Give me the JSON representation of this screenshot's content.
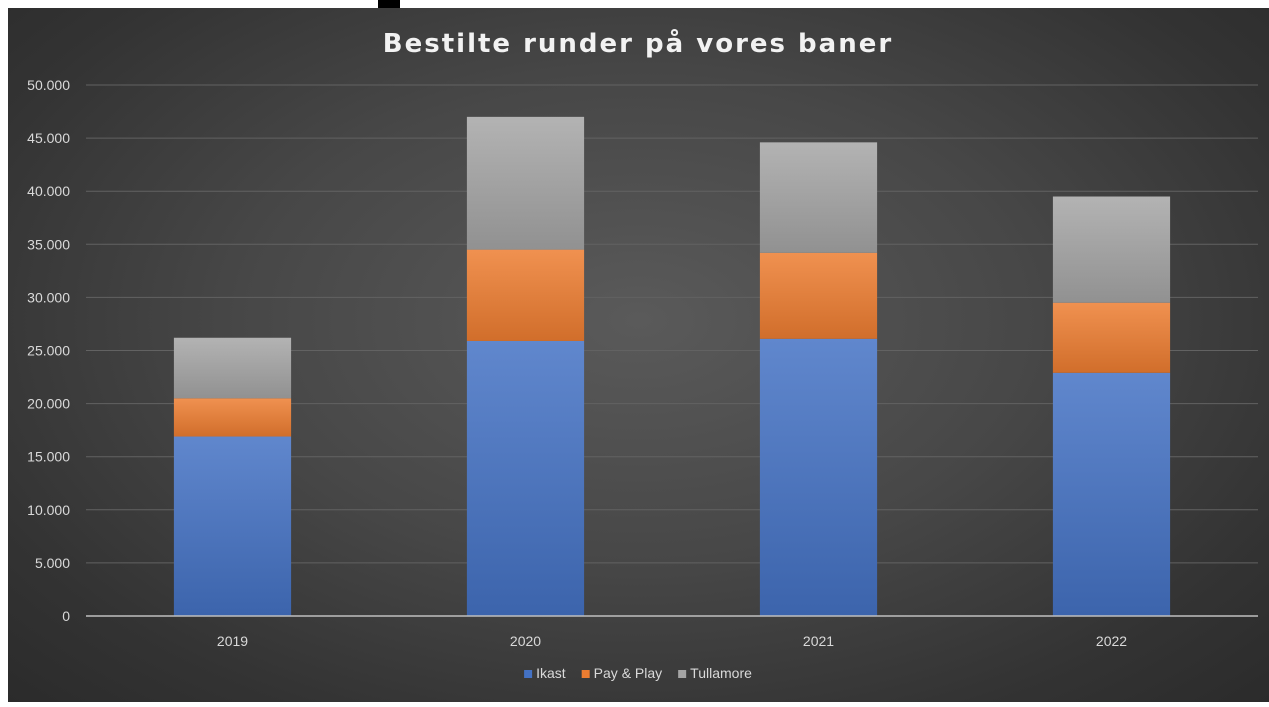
{
  "chart_data": {
    "type": "bar",
    "stacked": true,
    "title": "Bestilte runder på vores baner",
    "xlabel": "",
    "ylabel": "",
    "categories": [
      "2019",
      "2020",
      "2021",
      "2022"
    ],
    "series": [
      {
        "name": "Ikast",
        "values": [
          16900,
          25900,
          26100,
          22900
        ],
        "color": "#4472c4"
      },
      {
        "name": "Pay & Play",
        "values": [
          3600,
          8600,
          8100,
          6600
        ],
        "color": "#ed7d31"
      },
      {
        "name": "Tullamore",
        "values": [
          5700,
          12500,
          10400,
          10000
        ],
        "color": "#a5a5a5"
      }
    ],
    "ylim": [
      0,
      50000
    ],
    "ytick_step": 5000,
    "ytick_labels": [
      "0",
      "5.000",
      "10.000",
      "15.000",
      "20.000",
      "25.000",
      "30.000",
      "35.000",
      "40.000",
      "45.000",
      "50.000"
    ],
    "grid": true,
    "legend": "bottom",
    "background": "#404040"
  }
}
